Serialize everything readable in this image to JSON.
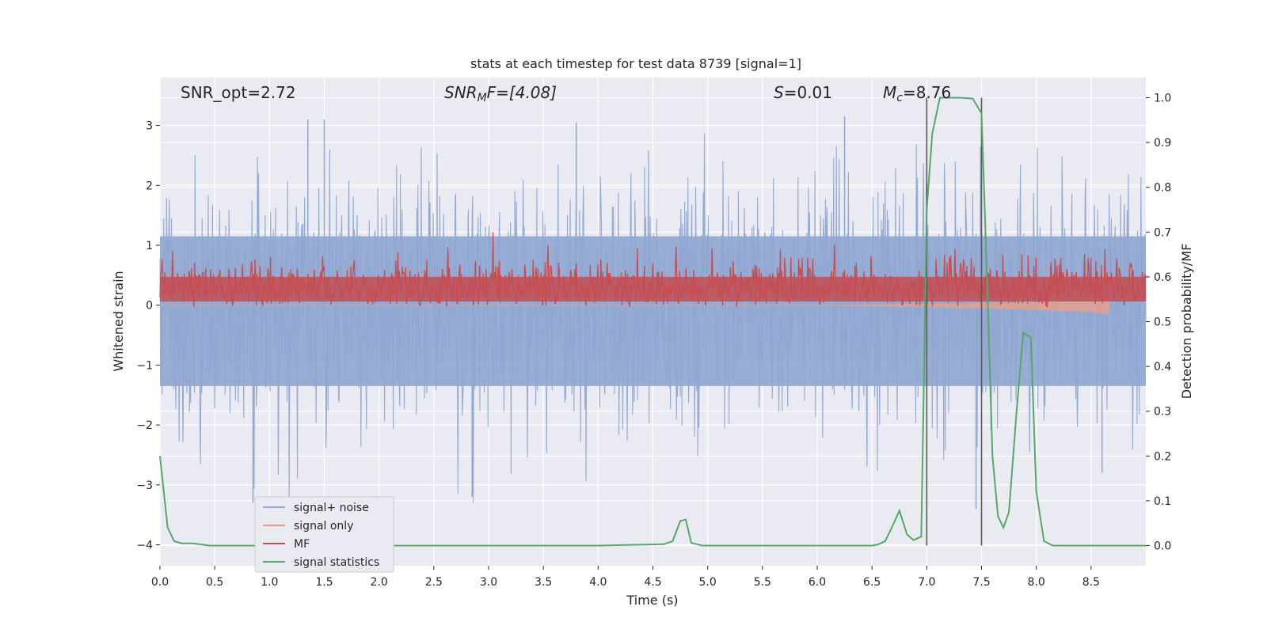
{
  "chart_data": {
    "type": "line",
    "title": "stats at each timestep for test data 8739 [signal=1]",
    "xlabel": "Time (s)",
    "ylabel": "Whitened strain",
    "y2label": "Detection probability/MF",
    "xlim": [
      0,
      9
    ],
    "ylim": [
      -4.35,
      3.8
    ],
    "y2lim": [
      -0.045,
      1.045
    ],
    "xticks": [
      "0.0",
      "0.5",
      "1.0",
      "1.5",
      "2.0",
      "2.5",
      "3.0",
      "3.5",
      "4.0",
      "4.5",
      "5.0",
      "5.5",
      "6.0",
      "6.5",
      "7.0",
      "7.5",
      "8.0",
      "8.5"
    ],
    "yticks": [
      "3",
      "2",
      "1",
      "0",
      "−1",
      "−2",
      "−3",
      "−4"
    ],
    "y2ticks": [
      "1.0",
      "0.9",
      "0.8",
      "0.7",
      "0.6",
      "0.5",
      "0.4",
      "0.3",
      "0.2",
      "0.1",
      "0.0"
    ],
    "grid": true,
    "legend_position": "lower-left",
    "colors": {
      "background": "#eaeaf2",
      "grid": "#ffffff",
      "noise": "#8fa6d0",
      "signal": "#e5a18f",
      "mf": "#c44e52",
      "stat": "#55a868",
      "vline": "#595959"
    },
    "annotations": {
      "snr_opt": "SNR_opt=2.72",
      "snr_mf_label": "SNR",
      "snr_mf_sub": "M",
      "snr_mf_rest": "F=[4.08]",
      "s_label": "S",
      "s_rest": "=0.01",
      "mc_label": "M",
      "mc_sub": "c",
      "mc_rest": "=8.76"
    },
    "vertical_lines": [
      7.0,
      7.5
    ],
    "series": [
      {
        "name": "signal+ noise",
        "axis": "left",
        "description_range": [
          -3.3,
          3.15
        ],
        "peaks": [
          [
            1.35,
            3.1
          ],
          [
            1.5,
            3.1
          ],
          [
            3.8,
            3.05
          ],
          [
            6.25,
            3.15
          ],
          [
            0.85,
            -3.3
          ],
          [
            2.85,
            -3.2
          ],
          [
            7.45,
            -3.4
          ],
          [
            8.6,
            -2.8
          ]
        ]
      },
      {
        "name": "signal only",
        "axis": "left",
        "x": [
          0,
          5.0,
          6.0,
          6.5,
          7.0,
          7.5,
          8.0,
          8.5,
          8.65,
          8.67
        ],
        "y": [
          0.0,
          0.0,
          0.0,
          0.02,
          0.05,
          0.1,
          0.15,
          0.22,
          0.3,
          0.0
        ]
      },
      {
        "name": "MF",
        "axis": "right",
        "range": [
          0.53,
          0.7
        ]
      },
      {
        "name": "signal statistics",
        "axis": "right",
        "x": [
          0.0,
          0.07,
          0.13,
          0.2,
          0.3,
          0.45,
          0.6,
          1.0,
          2.0,
          3.0,
          4.0,
          4.6,
          4.68,
          4.75,
          4.8,
          4.85,
          4.95,
          5.5,
          6.0,
          6.5,
          6.55,
          6.62,
          6.68,
          6.75,
          6.82,
          6.88,
          6.95,
          7.0,
          7.05,
          7.12,
          7.2,
          7.3,
          7.42,
          7.5,
          7.55,
          7.6,
          7.65,
          7.7,
          7.75,
          7.82,
          7.88,
          7.95,
          8.0,
          8.07,
          8.15,
          8.3,
          8.5,
          8.8,
          9.0
        ],
        "y": [
          0.2,
          0.04,
          0.01,
          0.005,
          0.005,
          0.0,
          0.0,
          0.0,
          0.0,
          0.0,
          0.0,
          0.003,
          0.01,
          0.055,
          0.058,
          0.006,
          0.0,
          0.0,
          0.0,
          0.0,
          0.002,
          0.01,
          0.04,
          0.078,
          0.025,
          0.012,
          0.02,
          0.75,
          0.92,
          1.0,
          1.0,
          1.0,
          0.998,
          0.965,
          0.6,
          0.2,
          0.065,
          0.04,
          0.075,
          0.3,
          0.475,
          0.465,
          0.12,
          0.01,
          0.0,
          0.0,
          0.0,
          0.0,
          0.0
        ]
      }
    ]
  }
}
